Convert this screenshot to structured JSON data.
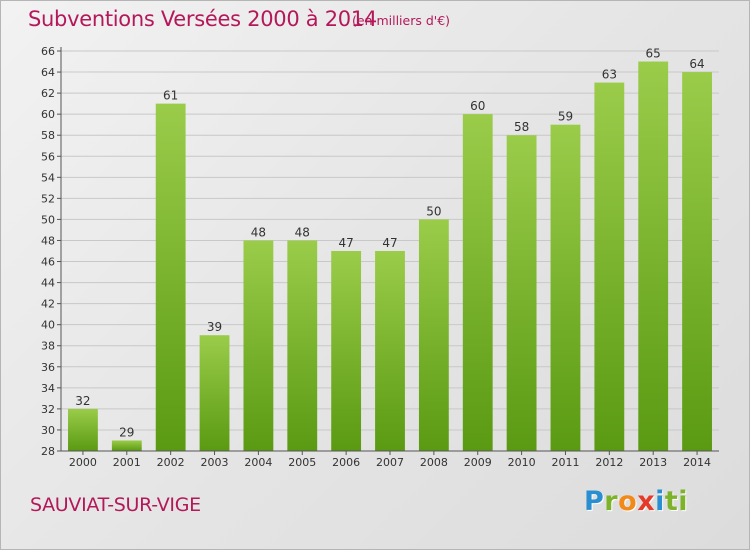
{
  "header": {
    "title": "Subventions Versées 2000 à 2014",
    "subtitle": "(en milliers d'€)"
  },
  "footer": {
    "commune": "SAUVIAT-SUR-VIGE",
    "logo_text": "Proxiti"
  },
  "colors": {
    "accent": "#b4185a",
    "bar_top": "#9acc4a",
    "bar_bottom": "#5a9a12",
    "grid": "#c8c8c8"
  },
  "chart_data": {
    "type": "bar",
    "categories": [
      "2000",
      "2001",
      "2002",
      "2003",
      "2004",
      "2005",
      "2006",
      "2007",
      "2008",
      "2009",
      "2010",
      "2011",
      "2012",
      "2013",
      "2014"
    ],
    "values": [
      32,
      29,
      61,
      39,
      48,
      48,
      47,
      47,
      50,
      60,
      58,
      59,
      63,
      65,
      64
    ],
    "title": "Subventions Versées 2000 à 2014",
    "ylim": [
      28,
      66
    ],
    "yticks": [
      28,
      30,
      32,
      34,
      36,
      38,
      40,
      42,
      44,
      46,
      48,
      50,
      52,
      54,
      56,
      58,
      60,
      62,
      64,
      66
    ],
    "grid": true,
    "data_labels": true
  }
}
